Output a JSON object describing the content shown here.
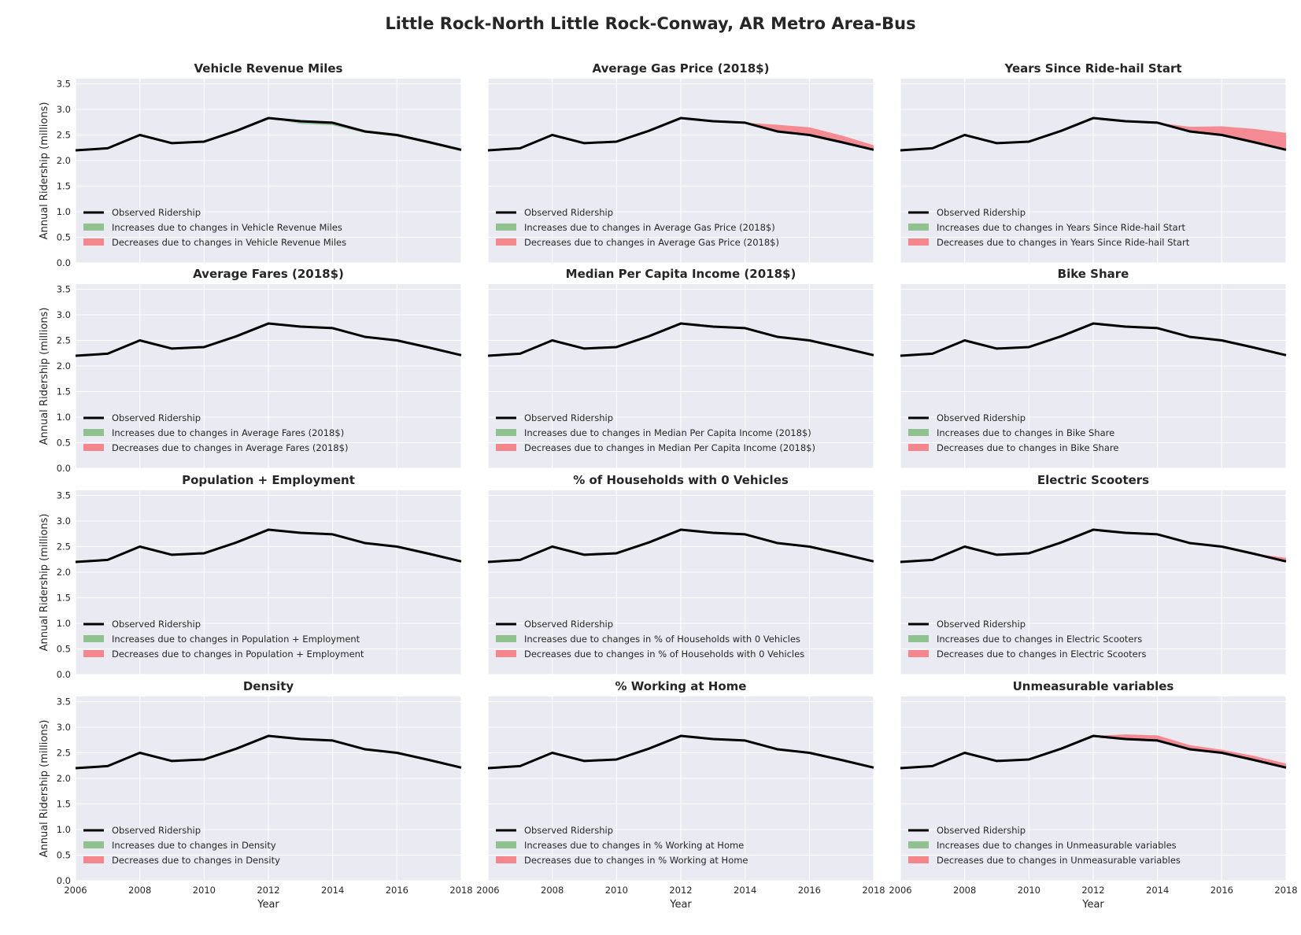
{
  "title": "Little Rock-North Little Rock-Conway, AR Metro Area-Bus",
  "colors": {
    "panel_bg": "#eaeaf2",
    "grid": "#ffffff",
    "observed": "#000000",
    "increase": "#8fc28f",
    "decrease": "#f4868c"
  },
  "chart_data": {
    "type": "area",
    "xlabel": "Year",
    "ylabel": "Annual Ridership (millions)",
    "xlim": [
      2006,
      2018
    ],
    "ylim": [
      0,
      3.6
    ],
    "x_ticks": [
      "2006",
      "2008",
      "2010",
      "2012",
      "2014",
      "2016",
      "2018"
    ],
    "y_ticks": [
      "0.0",
      "0.5",
      "1.0",
      "1.5",
      "2.0",
      "2.5",
      "3.0",
      "3.5"
    ],
    "years": [
      2006,
      2007,
      2008,
      2009,
      2010,
      2011,
      2012,
      2013,
      2014,
      2015,
      2016,
      2017,
      2018
    ],
    "observed": [
      2.2,
      2.24,
      2.5,
      2.34,
      2.37,
      2.58,
      2.83,
      2.77,
      2.74,
      2.57,
      2.5,
      2.36,
      2.21
    ],
    "legend_observed": "Observed Ridership",
    "panels": [
      {
        "title": "Vehicle Revenue Miles",
        "legend_increase": "Increases due to changes in Vehicle Revenue Miles",
        "legend_decrease": "Decreases due to changes in Vehicle Revenue Miles",
        "effect": [
          0,
          0,
          0,
          0,
          0,
          0,
          0,
          -0.05,
          -0.05,
          -0.03,
          -0.03,
          -0.03,
          -0.03
        ]
      },
      {
        "title": "Average Gas Price (2018$)",
        "legend_increase": "Increases due to changes in Average Gas Price (2018$)",
        "legend_decrease": "Decreases due to changes in Average Gas Price (2018$)",
        "effect": [
          0,
          0,
          0,
          0,
          0,
          0,
          0,
          0,
          0,
          0.13,
          0.15,
          0.13,
          0.09
        ]
      },
      {
        "title": "Years Since Ride-hail Start",
        "legend_increase": "Increases due to changes in Years Since Ride-hail Start",
        "legend_decrease": "Decreases due to changes in Years Since Ride-hail Start",
        "effect": [
          0,
          0,
          0,
          0,
          0,
          0,
          0,
          0,
          0,
          0.09,
          0.17,
          0.26,
          0.33
        ]
      },
      {
        "title": "Average Fares (2018$)",
        "legend_increase": "Increases due to changes in Average Fares (2018$)",
        "legend_decrease": "Decreases due to changes in Average Fares (2018$)",
        "effect": [
          0,
          0,
          0,
          0,
          0,
          0,
          0,
          0,
          0,
          0,
          0,
          0,
          0
        ]
      },
      {
        "title": "Median Per Capita Income (2018$)",
        "legend_increase": "Increases due to changes in Median Per Capita Income (2018$)",
        "legend_decrease": "Decreases due to changes in Median Per Capita Income (2018$)",
        "effect": [
          0,
          0,
          0,
          0,
          0,
          0,
          0,
          0,
          0,
          0,
          0,
          0,
          0
        ]
      },
      {
        "title": "Bike Share",
        "legend_increase": "Increases due to changes in Bike Share",
        "legend_decrease": "Decreases due to changes in Bike Share",
        "effect": [
          0,
          0,
          0,
          0,
          0,
          0,
          0,
          0,
          0,
          0,
          0,
          0,
          0
        ]
      },
      {
        "title": "Population + Employment",
        "legend_increase": "Increases due to changes in Population + Employment",
        "legend_decrease": "Decreases due to changes in Population + Employment",
        "effect": [
          0,
          0,
          0,
          0,
          0,
          0,
          0,
          0,
          0,
          0,
          0,
          0,
          0
        ]
      },
      {
        "title": "% of Households with 0 Vehicles",
        "legend_increase": "Increases due to changes in % of Households with 0 Vehicles",
        "legend_decrease": "Decreases due to changes in % of Households with 0 Vehicles",
        "effect": [
          0,
          0,
          0,
          0,
          0,
          0,
          0,
          0,
          0,
          0,
          0,
          0,
          0
        ]
      },
      {
        "title": "Electric Scooters",
        "legend_increase": "Increases due to changes in Electric Scooters",
        "legend_decrease": "Decreases due to changes in Electric Scooters",
        "effect": [
          0,
          0,
          0,
          0,
          0,
          0,
          0,
          0,
          0,
          0,
          0,
          0,
          0.07
        ]
      },
      {
        "title": "Density",
        "legend_increase": "Increases due to changes in Density",
        "legend_decrease": "Decreases due to changes in Density",
        "effect": [
          0,
          0,
          0,
          0,
          0,
          0,
          0,
          0,
          0,
          0,
          0,
          0,
          0
        ]
      },
      {
        "title": "% Working at Home",
        "legend_increase": "Increases due to changes in % Working at Home",
        "legend_decrease": "Decreases due to changes in % Working at Home",
        "effect": [
          0,
          0,
          0,
          0,
          0,
          0,
          0,
          0,
          0,
          0,
          0,
          0,
          0.02
        ]
      },
      {
        "title": "Unmeasurable variables",
        "legend_increase": "Increases due to changes in Unmeasurable variables",
        "legend_decrease": "Decreases due to changes in Unmeasurable variables",
        "effect": [
          0,
          0,
          0,
          0,
          0,
          0,
          0,
          0.09,
          0.1,
          0.08,
          0.06,
          0.08,
          0.08
        ]
      }
    ]
  }
}
